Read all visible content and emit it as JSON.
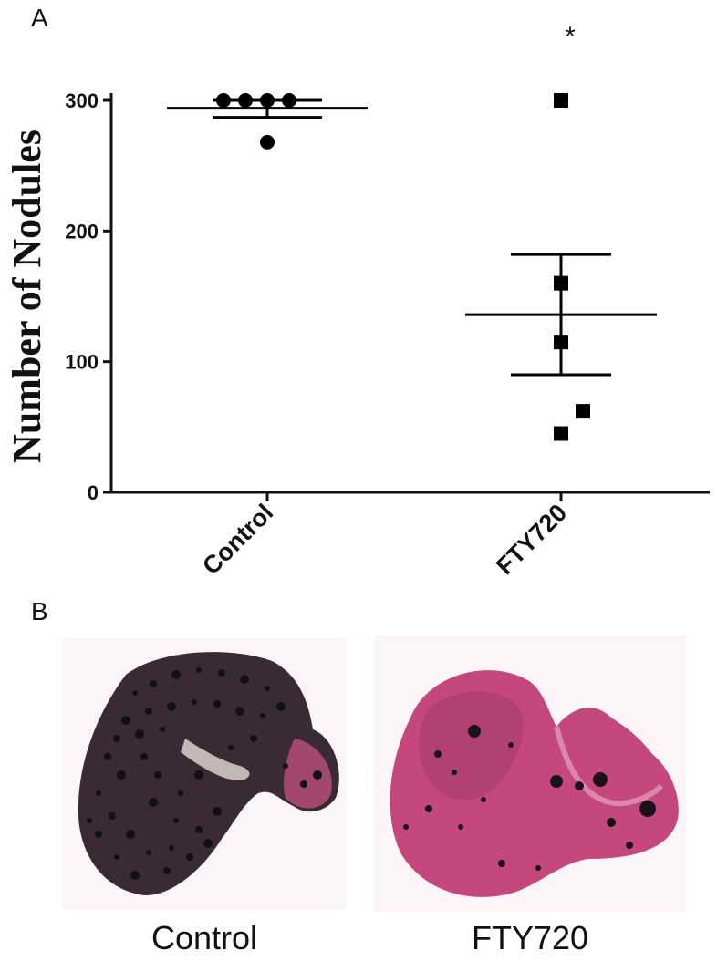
{
  "panels": {
    "a_label": "A",
    "b_label": "B"
  },
  "chart_data": {
    "type": "scatter",
    "ylabel": "Number of Nodules",
    "ylim": [
      0,
      300
    ],
    "yticks": [
      0,
      100,
      200,
      300
    ],
    "categories": [
      "Control",
      "FTY720"
    ],
    "groups": [
      {
        "category": "Control",
        "marker": "circle",
        "values": [
          300,
          300,
          300,
          300,
          268
        ],
        "mean": 294,
        "sem_upper": 300,
        "sem_lower": 287
      },
      {
        "category": "FTY720",
        "marker": "square",
        "values": [
          300,
          160,
          115,
          62,
          45
        ],
        "mean": 136,
        "sem_upper": 182,
        "sem_lower": 90
      }
    ],
    "annotations": [
      {
        "text": "*",
        "category": "FTY720"
      }
    ],
    "colors": {
      "marker": "#000000",
      "axis": "#111111"
    }
  },
  "photos": [
    {
      "caption": "Control",
      "tissue_color": "#3b2a33",
      "nodule_color": "#111111"
    },
    {
      "caption": "FTY720",
      "tissue_color": "#c2477c",
      "nodule_color": "#1a1216"
    }
  ]
}
